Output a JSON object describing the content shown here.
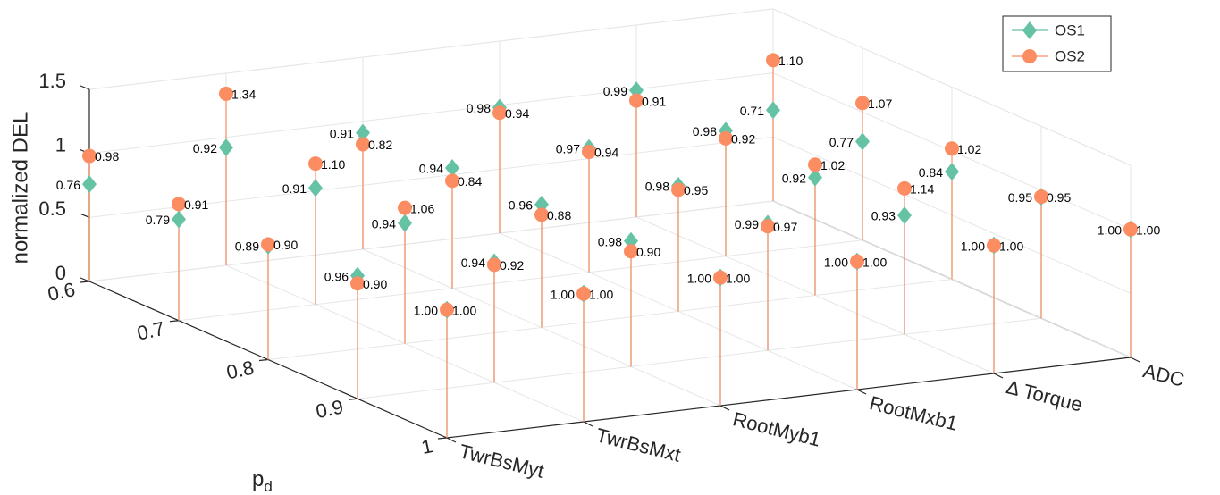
{
  "chart_data": {
    "type": "stem3",
    "zlabel": "normalized DEL",
    "ylabel": "p",
    "ylabel_subscript": "d",
    "categories": [
      "TwrBsMyt",
      "TwrBsMxt",
      "RootMyb1",
      "RootMxb1",
      "Δ Torque",
      "ADC"
    ],
    "ylim": [
      0.6,
      1
    ],
    "yticks": [
      0.6,
      0.7,
      0.8,
      0.9,
      1
    ],
    "zlim": [
      0,
      1.5
    ],
    "zticks": [
      0,
      0.5,
      1,
      1.5
    ],
    "grid": true,
    "legend": "top-right",
    "series": [
      {
        "name": "OS1",
        "color": "#66c2a5",
        "marker": "diamond",
        "values": [
          [
            0.76,
            0.92,
            0.91,
            0.98,
            0.99,
            0.71
          ],
          [
            0.79,
            0.91,
            0.94,
            0.97,
            0.98,
            0.77
          ],
          [
            0.89,
            0.94,
            0.96,
            0.98,
            0.92,
            0.84
          ],
          [
            0.96,
            0.94,
            0.98,
            0.99,
            0.93,
            0.95
          ],
          [
            1,
            1,
            1,
            1,
            1,
            1
          ]
        ],
        "value_labels": [
          [
            "0.76",
            "0.92",
            "0.91",
            "0.98",
            "0.99",
            "0.71"
          ],
          [
            "0.79",
            "0.91",
            "0.94",
            "0.97",
            "0.98",
            "0.77"
          ],
          [
            "0.89",
            "0.94",
            "0.96",
            "0.98",
            "0.92",
            "0.84"
          ],
          [
            "0.96",
            "0.94",
            "0.98",
            "0.99",
            "0.93",
            "0.95"
          ],
          [
            "1.00",
            "1.00",
            "1.00",
            "1.00",
            "1.00",
            "1.00"
          ]
        ]
      },
      {
        "name": "OS2",
        "color": "#fc8d62",
        "marker": "circle",
        "values": [
          [
            0.98,
            1.34,
            0.82,
            0.94,
            0.91,
            1.1
          ],
          [
            0.91,
            1.1,
            0.84,
            0.94,
            0.92,
            1.07
          ],
          [
            0.9,
            1.06,
            0.88,
            0.95,
            1.02,
            1.02
          ],
          [
            0.9,
            0.92,
            0.9,
            0.97,
            1.14,
            0.95
          ],
          [
            1,
            1,
            1,
            1,
            1,
            1
          ]
        ],
        "value_labels": [
          [
            "0.98",
            "1.34",
            "0.82",
            "0.94",
            "0.91",
            "1.10"
          ],
          [
            "0.91",
            "1.10",
            "0.84",
            "0.94",
            "0.92",
            "1.07"
          ],
          [
            "0.90",
            "1.06",
            "0.88",
            "0.95",
            "1.02",
            "1.02"
          ],
          [
            "0.90",
            "0.92",
            "0.90",
            "0.97",
            "1.14",
            "0.95"
          ],
          [
            "1.00",
            "1.00",
            "1.00",
            "1.00",
            "1.00",
            "1.00"
          ]
        ]
      }
    ]
  }
}
